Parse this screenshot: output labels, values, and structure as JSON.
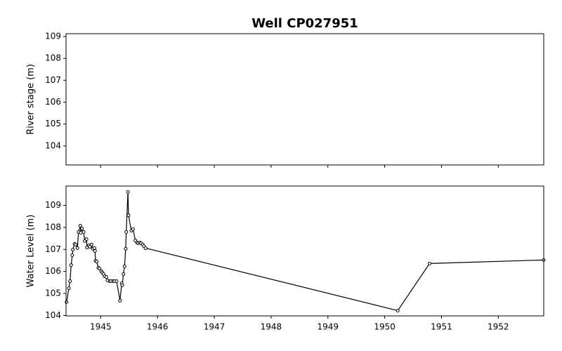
{
  "chart_data": [
    {
      "type": "line",
      "title": "Well CP027951",
      "ylabel": "River stage (m)",
      "ylim": [
        103.13,
        109.13
      ],
      "yticks": [
        104,
        105,
        106,
        107,
        108,
        109
      ],
      "series": []
    },
    {
      "type": "line",
      "ylabel": "Water Level (m)",
      "xlim": [
        1944.39,
        1952.8
      ],
      "xticks": [
        1945,
        1946,
        1947,
        1948,
        1949,
        1950,
        1951,
        1952
      ],
      "ylim": [
        103.98,
        109.88
      ],
      "yticks": [
        104,
        105,
        106,
        107,
        108,
        109
      ],
      "series": [
        {
          "color": "#000000",
          "x": [
            1944.4,
            1944.44,
            1944.46,
            1944.48,
            1944.5,
            1944.51,
            1944.54,
            1944.56,
            1944.59,
            1944.61,
            1944.64,
            1944.65,
            1944.67,
            1944.7,
            1944.72,
            1944.75,
            1944.76,
            1944.79,
            1944.81,
            1944.84,
            1944.86,
            1944.89,
            1944.9,
            1944.91,
            1944.93,
            1944.96,
            1944.98,
            1945.01,
            1945.03,
            1945.05,
            1945.07,
            1945.1,
            1945.12,
            1945.16,
            1945.18,
            1945.22,
            1945.24,
            1945.28,
            1945.34,
            1945.37,
            1945.38,
            1945.4,
            1945.42,
            1945.44,
            1945.45,
            1945.48,
            1945.49,
            1945.54,
            1945.57,
            1945.61,
            1945.64,
            1945.66,
            1945.69,
            1945.71,
            1945.74,
            1945.76,
            1945.79,
            1950.23,
            1950.79,
            1952.8
          ],
          "values": [
            104.61,
            105.24,
            105.56,
            106.29,
            106.74,
            106.99,
            107.25,
            107.22,
            107.06,
            107.79,
            108.08,
            107.76,
            107.95,
            107.79,
            107.38,
            107.47,
            107.09,
            107.18,
            107.12,
            107.22,
            107.03,
            107.06,
            106.93,
            106.48,
            106.45,
            106.17,
            106.13,
            106.01,
            105.94,
            105.88,
            105.78,
            105.75,
            105.59,
            105.56,
            105.56,
            105.56,
            105.56,
            105.56,
            104.67,
            105.46,
            105.37,
            105.88,
            106.23,
            107.03,
            107.79,
            109.61,
            108.55,
            107.85,
            107.92,
            107.41,
            107.31,
            107.28,
            107.31,
            107.28,
            107.22,
            107.15,
            107.06,
            104.22,
            106.36,
            106.52
          ]
        }
      ]
    }
  ]
}
